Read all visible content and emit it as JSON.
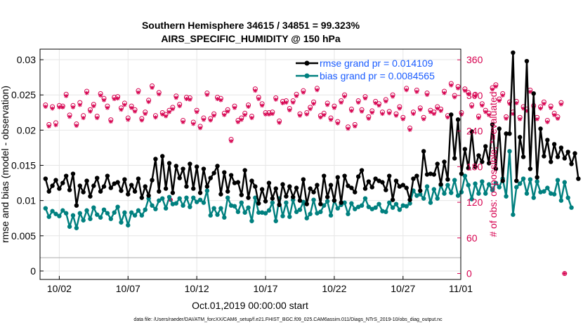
{
  "chart_data": {
    "type": "line",
    "title": "Southern Hemisphere 34615 / 34851 = 99.323%",
    "subtitle": "AIRS_SPECIFIC_HUMIDITY @ 150 hPa",
    "xlabel": "Oct.01,2019 00:00:00 start",
    "ylabel": "rmse and bias (model - observation)",
    "y2label": "# of obs: o=possible; *=evaluated",
    "footnote": "data file: /Users/raeder/DAI/ATM_forcXX/CAM6_setup/f.e21.FHIST_BGC.f09_025.CAM6assim.011/Diags_NTrS_2019-10/obs_diag_output.nc",
    "xlim": [
      0.6,
      31.2
    ],
    "ylim": [
      -0.0012,
      0.0315
    ],
    "y2lim": [
      -10,
      378
    ],
    "x_ticks": [
      2,
      7,
      12,
      17,
      22,
      27,
      32
    ],
    "x_tick_labels": [
      "10/02",
      "10/07",
      "10/12",
      "10/17",
      "10/22",
      "10/27",
      "11/01"
    ],
    "y_ticks": [
      0,
      0.005,
      0.01,
      0.015,
      0.02,
      0.025,
      0.03
    ],
    "y_tick_labels": [
      "0",
      "0.005",
      "0.01",
      "0.015",
      "0.02",
      "0.025",
      "0.03"
    ],
    "y2_ticks": [
      0,
      60,
      120,
      180,
      240,
      300,
      360
    ],
    "y2_tick_labels": [
      "0",
      "60",
      "120",
      "180",
      "240",
      "300",
      "360"
    ],
    "grid": true,
    "legend": [
      {
        "name": "rmse grand pr = 0.014109",
        "color": "#000000"
      },
      {
        "name": "bias grand pr = 0.0084565",
        "color": "#00807f"
      }
    ],
    "legend_position": "top-right",
    "x_start": 1.0,
    "x_step": 0.25,
    "series": [
      {
        "name": "rmse",
        "color": "#000000",
        "values": [
          0.0131,
          0.0113,
          0.0121,
          0.0129,
          0.0117,
          0.0125,
          0.0135,
          0.0115,
          0.0138,
          0.0093,
          0.0121,
          0.0112,
          0.0128,
          0.0106,
          0.0121,
          0.0132,
          0.0113,
          0.012,
          0.0135,
          0.0118,
          0.0124,
          0.0126,
          0.0114,
          0.013,
          0.0109,
          0.0122,
          0.0113,
          0.0131,
          0.0104,
          0.012,
          0.0107,
          0.0129,
          0.0159,
          0.0113,
          0.0163,
          0.0117,
          0.0153,
          0.0111,
          0.0149,
          0.0132,
          0.0145,
          0.012,
          0.0152,
          0.0117,
          0.0148,
          0.0111,
          0.0145,
          0.012,
          0.0132,
          0.0139,
          0.0149,
          0.0109,
          0.014,
          0.0113,
          0.0136,
          0.0125,
          0.0126,
          0.0108,
          0.0143,
          0.0104,
          0.0128,
          0.012,
          0.0096,
          0.0116,
          0.0099,
          0.0125,
          0.0103,
          0.0117,
          0.0094,
          0.0123,
          0.0106,
          0.012,
          0.0105,
          0.0118,
          0.01,
          0.013,
          0.0095,
          0.0117,
          0.0112,
          0.0122,
          0.0095,
          0.0135,
          0.0105,
          0.0122,
          0.01,
          0.0133,
          0.0097,
          0.0135,
          0.0121,
          0.0118,
          0.0112,
          0.0134,
          0.0143,
          0.0117,
          0.0127,
          0.0119,
          0.0131,
          0.0128,
          0.0126,
          0.0115,
          0.0135,
          0.0101,
          0.0128,
          0.012,
          0.0122,
          0.0118,
          0.0101,
          0.0131,
          0.0135,
          0.0114,
          0.017,
          0.0137,
          0.0138,
          0.0137,
          0.0152,
          0.0123,
          0.0155,
          0.013,
          0.0222,
          0.016,
          0.0215,
          0.0138,
          0.0173,
          0.0146,
          0.0198,
          0.0148,
          0.0164,
          0.0155,
          0.0177,
          0.0153,
          0.0208,
          0.0145,
          0.0202,
          0.0128,
          0.0195,
          0.0195,
          0.031,
          0.0128,
          0.019,
          0.0162,
          0.0298,
          0.0145,
          0.0252,
          0.0133,
          0.0202,
          0.0163,
          0.0186,
          0.0155,
          0.018,
          0.0162,
          0.0175,
          0.016,
          0.0169,
          0.0152,
          0.0167,
          0.0131
        ]
      },
      {
        "name": "bias",
        "color": "#00807f",
        "values": [
          0.0089,
          0.0077,
          0.0085,
          0.0081,
          0.0078,
          0.0086,
          0.0082,
          0.0063,
          0.0079,
          0.0061,
          0.0082,
          0.0072,
          0.0086,
          0.0074,
          0.009,
          0.008,
          0.0076,
          0.0087,
          0.0082,
          0.0074,
          0.0083,
          0.0091,
          0.0069,
          0.0083,
          0.0065,
          0.0083,
          0.0079,
          0.0086,
          0.0079,
          0.0087,
          0.0103,
          0.0093,
          0.0088,
          0.01,
          0.0103,
          0.0089,
          0.0105,
          0.0095,
          0.0096,
          0.0103,
          0.0093,
          0.0104,
          0.0091,
          0.0104,
          0.0098,
          0.0101,
          0.0097,
          0.0114,
          0.0079,
          0.0089,
          0.008,
          0.0089,
          0.0076,
          0.0104,
          0.0093,
          0.0092,
          0.0084,
          0.0097,
          0.0083,
          0.009,
          0.0071,
          0.0104,
          0.0083,
          0.0083,
          0.0082,
          0.0086,
          0.0097,
          0.0071,
          0.0103,
          0.0078,
          0.0097,
          0.0077,
          0.0101,
          0.0084,
          0.0087,
          0.0098,
          0.0075,
          0.0081,
          0.0101,
          0.0082,
          0.0084,
          0.0093,
          0.0099,
          0.0079,
          0.01,
          0.0089,
          0.0094,
          0.0097,
          0.0081,
          0.0096,
          0.0088,
          0.0091,
          0.0093,
          0.0103,
          0.0091,
          0.0088,
          0.009,
          0.0095,
          0.0085,
          0.0084,
          0.0097,
          0.009,
          0.0095,
          0.0087,
          0.0093,
          0.0092,
          0.0096,
          0.0114,
          0.0107,
          0.0109,
          0.0103,
          0.012,
          0.0097,
          0.0116,
          0.0103,
          0.0122,
          0.011,
          0.0122,
          0.0111,
          0.0129,
          0.0107,
          0.0112,
          0.0135,
          0.0122,
          0.0102,
          0.0124,
          0.011,
          0.0127,
          0.011,
          0.0123,
          0.0115,
          0.0125,
          0.0119,
          0.0131,
          0.0106,
          0.017,
          0.008,
          0.0119,
          0.0124,
          0.0131,
          0.011,
          0.013,
          0.0104,
          0.0127,
          0.0112,
          0.0113,
          0.0118,
          0.011,
          0.0109,
          0.0129,
          0.01,
          0.0126,
          0.0104,
          0.009
        ]
      }
    ],
    "obs_possible": [
      284,
      251,
      281,
      254,
      283,
      282,
      302,
      267,
      283,
      252,
      288,
      266,
      307,
      276,
      285,
      265,
      303,
      295,
      282,
      259,
      297,
      298,
      279,
      287,
      262,
      282,
      276,
      308,
      261,
      272,
      292,
      316,
      266,
      305,
      271,
      268,
      275,
      280,
      299,
      285,
      258,
      297,
      296,
      255,
      275,
      248,
      262,
      304,
      261,
      269,
      297,
      295,
      270,
      276,
      226,
      282,
      258,
      262,
      270,
      284,
      265,
      311,
      297,
      286,
      271,
      271,
      272,
      296,
      257,
      290,
      291,
      278,
      291,
      302,
      269,
      308,
      271,
      280,
      289,
      312,
      266,
      270,
      287,
      262,
      282,
      256,
      291,
      301,
      247,
      277,
      251,
      291,
      276,
      298,
      264,
      274,
      290,
      286,
      272,
      293,
      273,
      301,
      269,
      281,
      263,
      312,
      245,
      272,
      309,
      279,
      263,
      304,
      275,
      272,
      281,
      277,
      307,
      266,
      320,
      300,
      315,
      271,
      311,
      305,
      284,
      302,
      265,
      286,
      275,
      270,
      313,
      318,
      294,
      303,
      264,
      289,
      272,
      290,
      263,
      281,
      277,
      309,
      283,
      263,
      281,
      289,
      258,
      282,
      270,
      264,
      288,
      0
    ],
    "obs_evaluated": [
      281,
      248,
      278,
      250,
      280,
      280,
      299,
      264,
      280,
      249,
      284,
      262,
      304,
      273,
      282,
      262,
      300,
      292,
      279,
      256,
      294,
      295,
      276,
      284,
      259,
      279,
      273,
      305,
      258,
      269,
      289,
      313,
      263,
      302,
      268,
      265,
      272,
      277,
      296,
      282,
      255,
      294,
      293,
      252,
      272,
      245,
      259,
      301,
      258,
      266,
      294,
      292,
      267,
      273,
      223,
      279,
      255,
      259,
      267,
      281,
      262,
      308,
      294,
      283,
      268,
      268,
      269,
      293,
      254,
      287,
      288,
      275,
      288,
      299,
      266,
      305,
      268,
      277,
      286,
      309,
      263,
      267,
      284,
      259,
      279,
      253,
      288,
      298,
      244,
      274,
      248,
      288,
      273,
      295,
      261,
      271,
      287,
      283,
      269,
      290,
      270,
      298,
      266,
      278,
      260,
      309,
      242,
      269,
      306,
      276,
      260,
      301,
      272,
      269,
      278,
      274,
      304,
      263,
      317,
      297,
      312,
      268,
      308,
      302,
      281,
      299,
      262,
      283,
      272,
      267,
      310,
      315,
      291,
      300,
      261,
      286,
      269,
      287,
      260,
      278,
      274,
      306,
      280,
      260,
      278,
      286,
      255,
      279,
      267,
      261,
      285,
      0
    ],
    "mid_marker": {
      "x": 10.1,
      "value": 0.0101
    }
  }
}
